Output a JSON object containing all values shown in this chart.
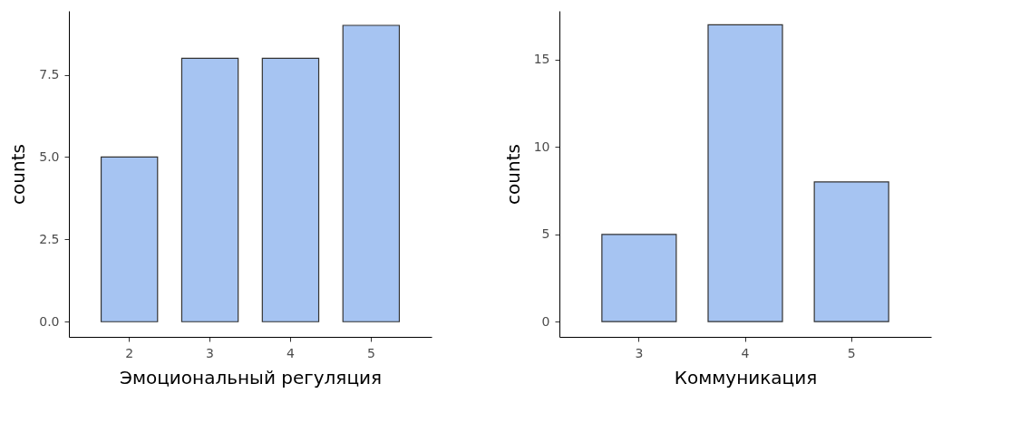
{
  "chart_data": [
    {
      "type": "bar",
      "xlabel": "Эмоциональный регуляция",
      "ylabel": "counts",
      "categories": [
        "2",
        "3",
        "4",
        "5"
      ],
      "values": [
        5,
        8,
        8,
        9
      ],
      "color": "#a6c4f2",
      "ylim": [
        -0.46,
        9.44
      ],
      "yticks": [
        {
          "value": 0,
          "label": "0.0"
        },
        {
          "value": 2.5,
          "label": "2.5"
        },
        {
          "value": 5,
          "label": "5.0"
        },
        {
          "value": 7.5,
          "label": "7.5"
        }
      ]
    },
    {
      "type": "bar",
      "xlabel": "Коммуникация",
      "ylabel": "counts",
      "categories": [
        "3",
        "4",
        "5"
      ],
      "values": [
        5,
        17,
        8
      ],
      "color": "#a6c4f2",
      "ylim": [
        -0.87,
        17.8
      ],
      "yticks": [
        0,
        5,
        10,
        15
      ]
    }
  ]
}
